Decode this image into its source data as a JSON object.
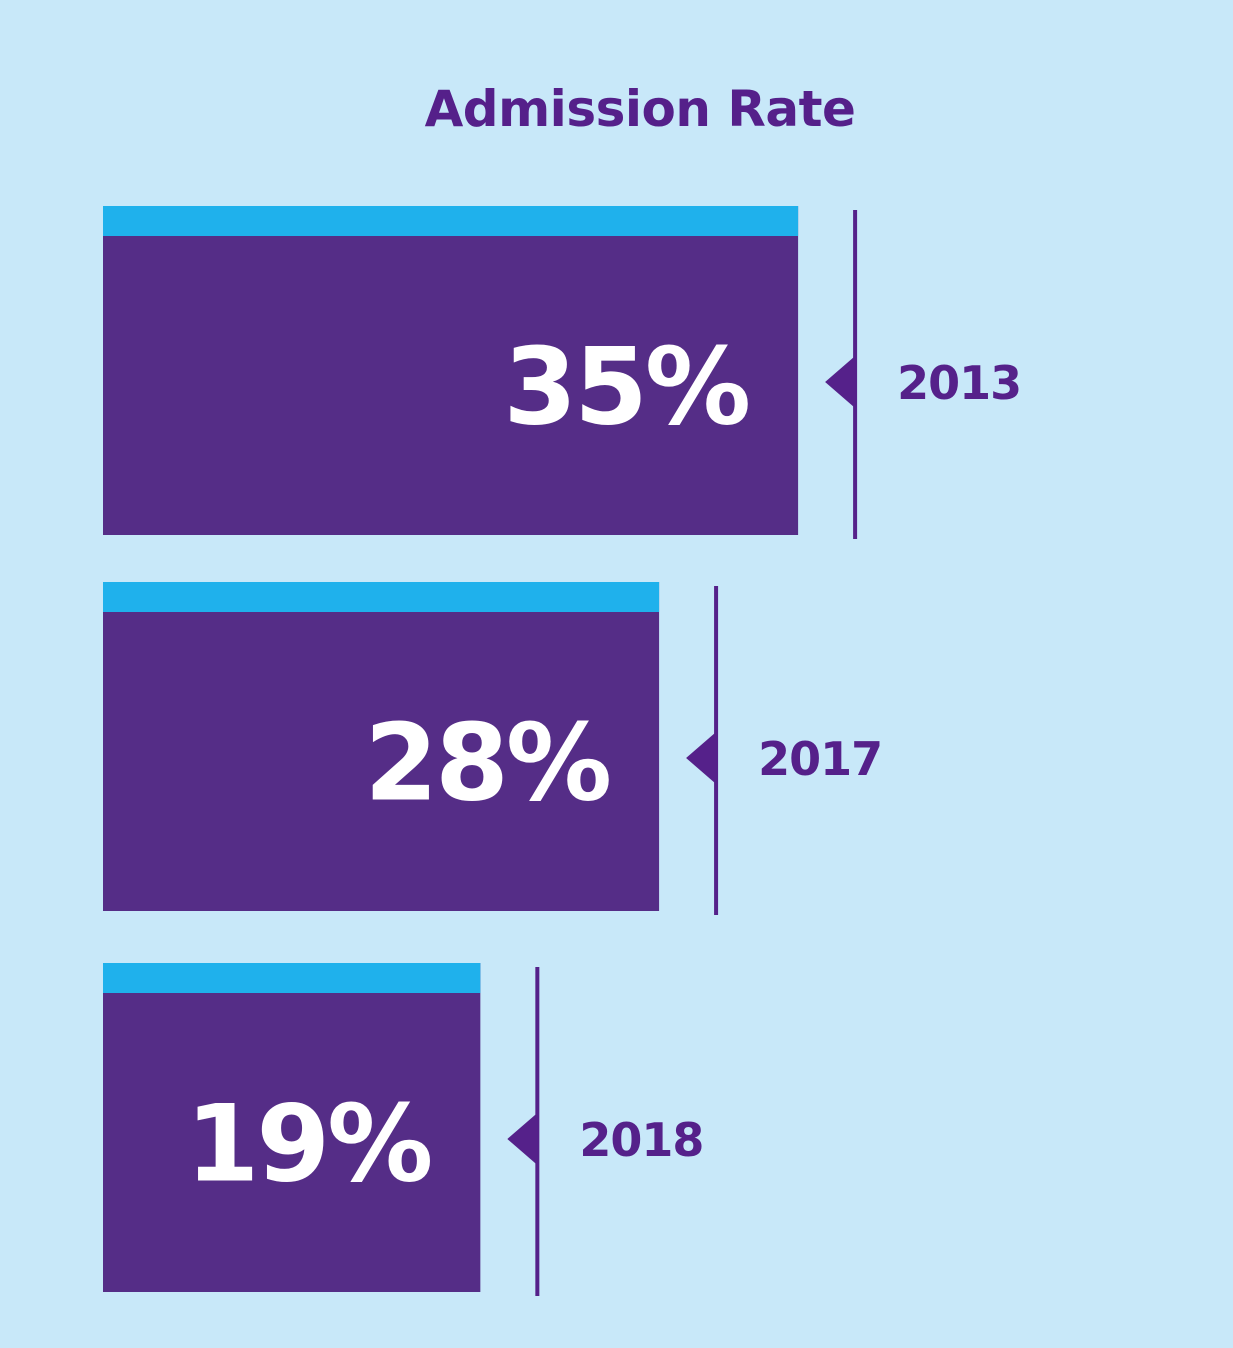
{
  "chart_data": {
    "type": "bar",
    "title": "Admission Rate",
    "categories": [
      "2013",
      "2017",
      "2018"
    ],
    "values": [
      35,
      28,
      19
    ],
    "value_labels": [
      "35%",
      "28%",
      "19%"
    ],
    "unit": "%",
    "orientation": "horizontal",
    "xlabel": "",
    "ylabel": "",
    "grid": false,
    "legend": "none"
  },
  "colors": {
    "background": "#c8e8f9",
    "bar_fill": "#552d87",
    "bar_top_stripe": "#1fb1ec",
    "marker": "#55218a",
    "label_text": "#ffffff",
    "year_text": "#55218a",
    "title_text": "#55208a"
  }
}
